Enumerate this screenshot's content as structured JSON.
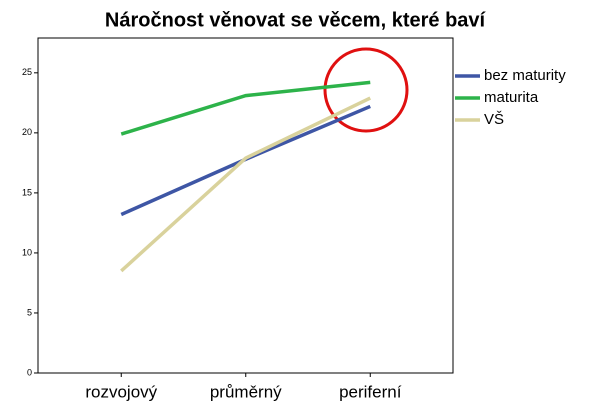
{
  "chart_data": {
    "type": "line",
    "title": "Náročnost věnovat se věcem, které baví",
    "categories": [
      "rozvojový",
      "průměrný",
      "periferní"
    ],
    "series": [
      {
        "name": "bez maturity",
        "color": "#3e56a5",
        "values": [
          13.2,
          17.8,
          22.2
        ]
      },
      {
        "name": "maturita",
        "color": "#2db34a",
        "values": [
          19.9,
          23.1,
          24.2
        ]
      },
      {
        "name": "VŠ",
        "color": "#d9d29c",
        "values": [
          8.5,
          17.9,
          22.9
        ]
      }
    ],
    "ylim": [
      0,
      27.9
    ],
    "yticks": [
      0,
      5,
      10,
      15,
      20,
      25
    ],
    "grid": false
  }
}
